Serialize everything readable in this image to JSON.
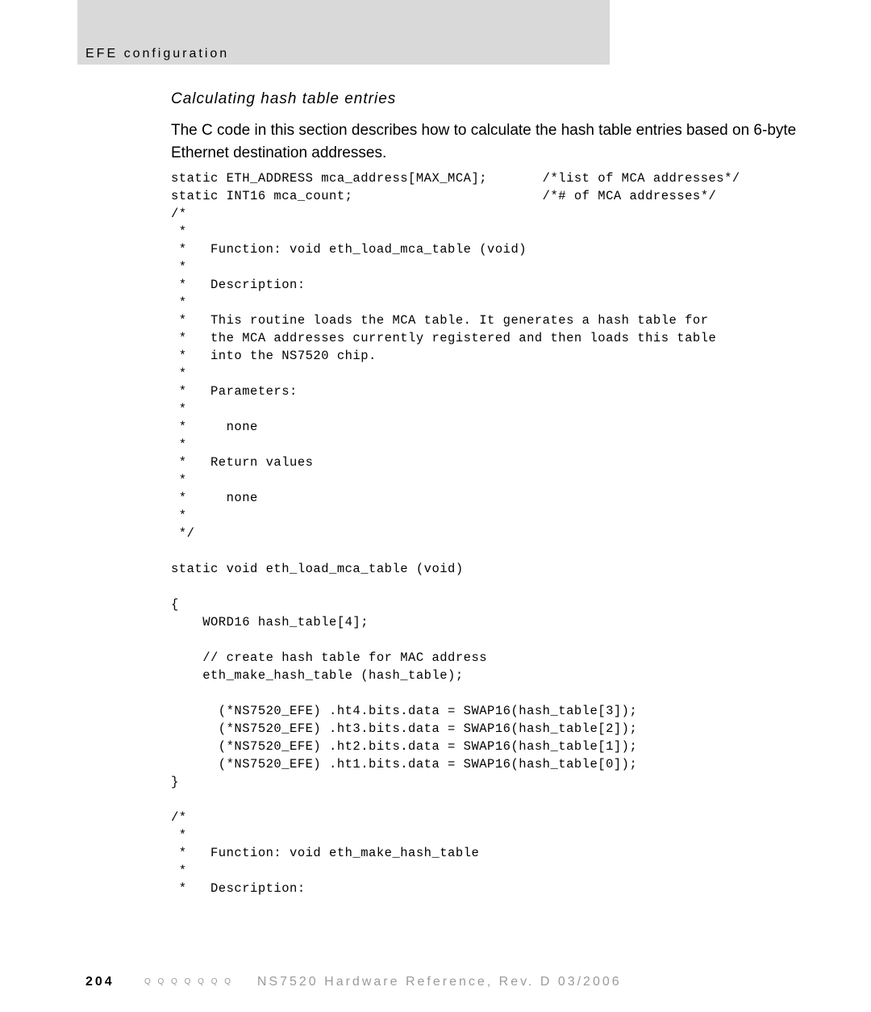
{
  "header": {
    "title": "EFE configuration"
  },
  "subtitle": "Calculating hash table entries",
  "body": "The C code in this section describes how to calculate the hash table entries based on 6-byte Ethernet destination addresses.",
  "code": "static ETH_ADDRESS mca_address[MAX_MCA];       /*list of MCA addresses*/\nstatic INT16 mca_count;                        /*# of MCA addresses*/\n/*\n *\n *   Function: void eth_load_mca_table (void)\n *\n *   Description:\n *\n *   This routine loads the MCA table. It generates a hash table for\n *   the MCA addresses currently registered and then loads this table\n *   into the NS7520 chip.\n *\n *   Parameters:\n *\n *     none\n *\n *   Return values\n *\n *     none\n *\n */\n\nstatic void eth_load_mca_table (void)\n\n{\n    WORD16 hash_table[4];\n\n    // create hash table for MAC address\n    eth_make_hash_table (hash_table);\n\n      (*NS7520_EFE) .ht4.bits.data = SWAP16(hash_table[3]);\n      (*NS7520_EFE) .ht3.bits.data = SWAP16(hash_table[2]);\n      (*NS7520_EFE) .ht2.bits.data = SWAP16(hash_table[1]);\n      (*NS7520_EFE) .ht1.bits.data = SWAP16(hash_table[0]);\n}\n\n/*\n *\n *   Function: void eth_make_hash_table\n *\n *   Description:",
  "footer": {
    "page_number": "204",
    "dots": "Q   Q   Q   Q   Q   Q   Q",
    "text": "NS7520 Hardware Reference, Rev. D  03/2006"
  },
  "colors": {
    "gray_bar": "#d9d9d9",
    "footer_gray": "#9a9a9a",
    "text": "#000000",
    "background": "#ffffff"
  },
  "typography": {
    "header_fontsize": 16,
    "subtitle_fontsize": 19,
    "body_fontsize": 19,
    "code_fontsize": 15.5,
    "footer_fontsize": 16
  }
}
